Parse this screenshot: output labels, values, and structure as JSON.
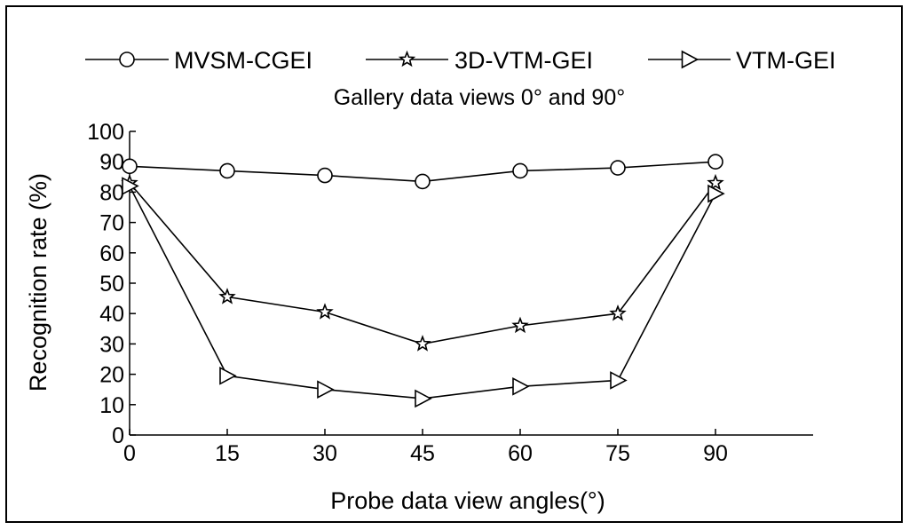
{
  "chart_data": {
    "type": "line",
    "title": "",
    "subtitle": "Gallery data views 0° and 90°",
    "xlabel": "Probe data view angles(°)",
    "ylabel": "Recognition rate (%)",
    "x": [
      0,
      15,
      30,
      45,
      60,
      75,
      90
    ],
    "xlim": [
      0,
      105
    ],
    "ylim": [
      0,
      100
    ],
    "xticks": [
      "0",
      "15",
      "30",
      "45",
      "60",
      "75",
      "90"
    ],
    "yticks": [
      "0",
      "10",
      "20",
      "30",
      "40",
      "50",
      "60",
      "70",
      "80",
      "90",
      "100"
    ],
    "grid": false,
    "legend_position": "top",
    "series": [
      {
        "name": "MVSM-CGEI",
        "marker": "circle",
        "values": [
          88.5,
          87,
          85.5,
          83.5,
          87,
          88,
          90
        ]
      },
      {
        "name": "3D-VTM-GEI",
        "marker": "star",
        "values": [
          83,
          45.5,
          40.5,
          30,
          36,
          40,
          83
        ]
      },
      {
        "name": "VTM-GEI",
        "marker": "triangle-right",
        "values": [
          82,
          19.5,
          15,
          12,
          16,
          18,
          79.5
        ]
      }
    ],
    "colors": {
      "line": "#000000",
      "background": "#ffffff"
    }
  }
}
